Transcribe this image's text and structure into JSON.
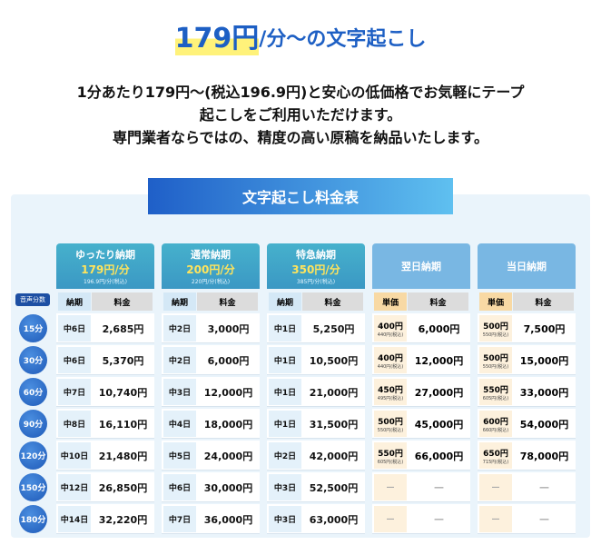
{
  "header": {
    "title_price": "179円",
    "title_rest": "/分〜の文字起こし",
    "intro": [
      "1分あたり179円〜(税込196.9円)と安心の低価格でお気軽にテープ",
      "起こしをご利用いただけます。",
      "専門業者ならではの、精度の高い原稿を納品いたします。"
    ]
  },
  "table": {
    "title": "文字起こし料金表",
    "minutes_label": "音声分数",
    "minutes": [
      "15分",
      "30分",
      "60分",
      "90分",
      "120分",
      "150分",
      "180分"
    ],
    "plans": [
      {
        "name": "ゆったり納期",
        "price": "179円/分",
        "price_tax": "196.9円/分(税込)",
        "columns": [
          "納期",
          "料金"
        ],
        "rows": [
          [
            "中6日",
            "2,685円"
          ],
          [
            "中6日",
            "5,370円"
          ],
          [
            "中7日",
            "10,740円"
          ],
          [
            "中8日",
            "16,110円"
          ],
          [
            "中10日",
            "21,480円"
          ],
          [
            "中12日",
            "26,850円"
          ],
          [
            "中14日",
            "32,220円"
          ]
        ]
      },
      {
        "name": "通常納期",
        "price": "200円/分",
        "price_tax": "220円/分(税込)",
        "columns": [
          "納期",
          "料金"
        ],
        "rows": [
          [
            "中2日",
            "3,000円"
          ],
          [
            "中2日",
            "6,000円"
          ],
          [
            "中3日",
            "12,000円"
          ],
          [
            "中4日",
            "18,000円"
          ],
          [
            "中5日",
            "24,000円"
          ],
          [
            "中6日",
            "30,000円"
          ],
          [
            "中7日",
            "36,000円"
          ]
        ]
      },
      {
        "name": "特急納期",
        "price": "350円/分",
        "price_tax": "385円/分(税込)",
        "columns": [
          "納期",
          "料金"
        ],
        "rows": [
          [
            "中1日",
            "5,250円"
          ],
          [
            "中1日",
            "10,500円"
          ],
          [
            "中1日",
            "21,000円"
          ],
          [
            "中1日",
            "31,500円"
          ],
          [
            "中2日",
            "42,000円"
          ],
          [
            "中3日",
            "52,500円"
          ],
          [
            "中3日",
            "63,000円"
          ]
        ]
      },
      {
        "name": "翌日納期",
        "columns": [
          "単価",
          "料金"
        ],
        "rows": [
          [
            "400円",
            "440円(税込)",
            "6,000円"
          ],
          [
            "400円",
            "440円(税込)",
            "12,000円"
          ],
          [
            "450円",
            "495円(税込)",
            "27,000円"
          ],
          [
            "500円",
            "550円(税込)",
            "45,000円"
          ],
          [
            "550円",
            "605円(税込)",
            "66,000円"
          ],
          [
            "—",
            "—"
          ],
          [
            "—",
            "—"
          ]
        ]
      },
      {
        "name": "当日納期",
        "columns": [
          "単価",
          "料金"
        ],
        "rows": [
          [
            "500円",
            "550円(税込)",
            "7,500円"
          ],
          [
            "500円",
            "550円(税込)",
            "15,000円"
          ],
          [
            "550円",
            "605円(税込)",
            "33,000円"
          ],
          [
            "600円",
            "660円(税込)",
            "54,000円"
          ],
          [
            "650円",
            "715円(税込)",
            "78,000円"
          ],
          [
            "—",
            "—"
          ],
          [
            "—",
            "—"
          ]
        ]
      }
    ]
  }
}
